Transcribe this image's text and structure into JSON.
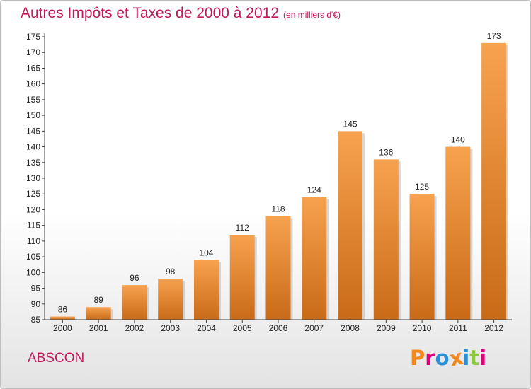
{
  "header": {
    "title": "Autres Impôts et Taxes de 2000 à 2012",
    "unit": "(en milliers d'€)"
  },
  "footer": {
    "location": "ABSCON",
    "logo_text": "Proxiti"
  },
  "colors": {
    "title": "#c2185b",
    "bar_top": "#f7a24f",
    "bar_bottom": "#c96a17",
    "axis": "#444444",
    "logo_letters": [
      "#f08a1c",
      "#e2007a",
      "#2a8fd6",
      "#f08a1c",
      "#2a8fd6",
      "#8cc63e",
      "#e2007a"
    ]
  },
  "chart_data": {
    "type": "bar",
    "title": "Autres Impôts et Taxes de 2000 à 2012",
    "xlabel": "",
    "ylabel": "",
    "categories": [
      "2000",
      "2001",
      "2002",
      "2003",
      "2004",
      "2005",
      "2006",
      "2007",
      "2008",
      "2009",
      "2010",
      "2011",
      "2012"
    ],
    "values": [
      86,
      89,
      96,
      98,
      104,
      112,
      118,
      124,
      145,
      136,
      125,
      140,
      173
    ],
    "ylim": [
      85,
      175
    ],
    "yticks": [
      85,
      90,
      95,
      100,
      105,
      110,
      115,
      120,
      125,
      130,
      135,
      140,
      145,
      150,
      155,
      160,
      165,
      170,
      175
    ],
    "grid": false,
    "legend": "none"
  }
}
